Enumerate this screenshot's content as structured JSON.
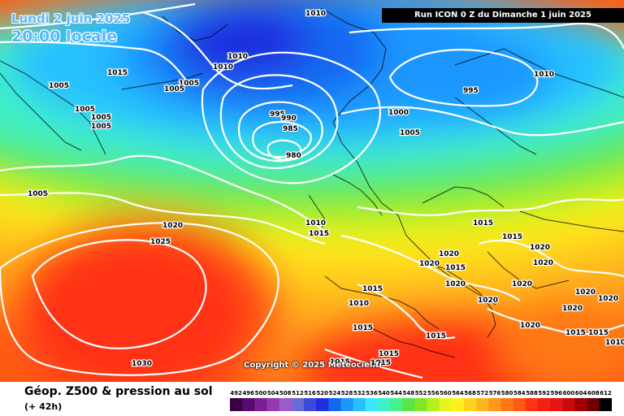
{
  "header": {
    "date_text": "Lundi 2 juin 2025",
    "time_text": "20:00 locale",
    "run_text": "Run ICON 0 Z du Dimanche 1 juin 2025"
  },
  "footer": {
    "copyright": "Copyright © 2025 Meteociel.fr",
    "title": "Géop. Z500 & pression au sol",
    "lead_time": "(+ 42h)"
  },
  "scale": {
    "labels": [
      "492",
      "496",
      "500",
      "504",
      "508",
      "512",
      "516",
      "520",
      "524",
      "528",
      "532",
      "536",
      "540",
      "544",
      "548",
      "552",
      "556",
      "560",
      "564",
      "568",
      "572",
      "576",
      "580",
      "584",
      "588",
      "592",
      "596",
      "600",
      "604",
      "608",
      "612"
    ],
    "colors": [
      "#3a0040",
      "#5a0a6e",
      "#7a1e94",
      "#9638b4",
      "#a05ac8",
      "#6a6ad8",
      "#3c48d8",
      "#1e2ee0",
      "#1468f0",
      "#1e96ff",
      "#28c0ff",
      "#3ce6ff",
      "#40f0c8",
      "#46f08c",
      "#58e646",
      "#82e628",
      "#b4f01e",
      "#e6f51e",
      "#fff01e",
      "#ffd21e",
      "#ffb41e",
      "#ff961e",
      "#ff7814",
      "#ff5a14",
      "#ff3214",
      "#f51e14",
      "#e61414",
      "#c80a0a",
      "#a00000",
      "#6e0000",
      "#000000"
    ]
  },
  "isobars": {
    "labels": [
      "1010",
      "1010",
      "1010",
      "1005",
      "1005",
      "1005",
      "1015",
      "1005",
      "1005",
      "1005",
      "995",
      "990",
      "985",
      "980",
      "1000",
      "995",
      "1005",
      "1005",
      "1010",
      "1010",
      "1015",
      "1020",
      "1025",
      "1030",
      "1015",
      "1015",
      "1020",
      "1020",
      "1015",
      "1020",
      "1020",
      "1020",
      "1020",
      "1015",
      "1010",
      "1020",
      "1020",
      "1020",
      "1020",
      "1015",
      "1015",
      "1015",
      "1015",
      "1015",
      "1015",
      "1015",
      "1020",
      "1010"
    ]
  },
  "colors": {
    "isobar": "#ffffff",
    "coast": "#000000"
  }
}
